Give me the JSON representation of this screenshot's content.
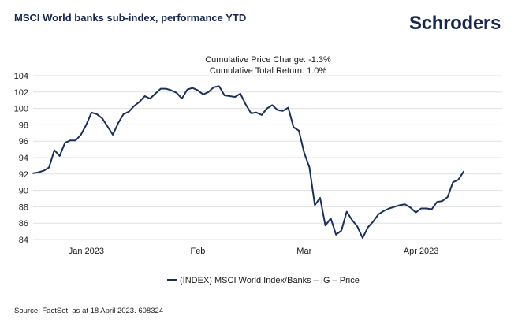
{
  "header": {
    "title": "MSCI World banks sub-index, performance YTD",
    "brand": "Schroders"
  },
  "footer": {
    "source": "Source: FactSet, as at 18 April 2023. 608324"
  },
  "colors": {
    "line": "#1b2f5b",
    "grid": "#e0e0e0",
    "title": "#16264f"
  },
  "chart_data": {
    "type": "line",
    "title": "MSCI World banks sub-index, performance YTD",
    "annotations": [
      "Cumulative Price Change: -1.3%",
      "Cumulative Total Return: 1.0%"
    ],
    "xlabel": "",
    "ylabel": "",
    "ylim": [
      84,
      104
    ],
    "yticks": [
      84,
      86,
      88,
      90,
      92,
      94,
      96,
      98,
      100,
      102,
      104
    ],
    "xticks": [
      {
        "label": "Jan 2023",
        "index": 10
      },
      {
        "label": "Feb",
        "index": 31
      },
      {
        "label": "Mar",
        "index": 51
      },
      {
        "label": "Apr 2023",
        "index": 73
      }
    ],
    "grid": true,
    "legend_position": "bottom-center",
    "series": [
      {
        "name": "(INDEX) MSCI World Index/Banks – IG – Price",
        "values": [
          92.1,
          92.2,
          92.4,
          92.8,
          94.9,
          94.2,
          95.8,
          96.1,
          96.1,
          96.8,
          98.0,
          99.5,
          99.3,
          98.8,
          97.8,
          96.8,
          98.2,
          99.3,
          99.6,
          100.3,
          100.8,
          101.5,
          101.2,
          101.8,
          102.4,
          102.4,
          102.2,
          101.9,
          101.2,
          102.3,
          102.5,
          102.2,
          101.7,
          102.0,
          102.6,
          102.7,
          101.6,
          101.5,
          101.4,
          101.8,
          100.5,
          99.4,
          99.5,
          99.2,
          100.0,
          100.4,
          99.8,
          99.7,
          100.1,
          97.7,
          97.3,
          94.6,
          92.8,
          88.2,
          89.1,
          85.7,
          86.6,
          84.6,
          85.1,
          87.4,
          86.4,
          85.6,
          84.2,
          85.5,
          86.2,
          87.1,
          87.5,
          87.8,
          88.0,
          88.2,
          88.3,
          87.9,
          87.3,
          87.8,
          87.8,
          87.7,
          88.6,
          88.7,
          89.2,
          91.0,
          91.3,
          92.3
        ]
      }
    ]
  }
}
